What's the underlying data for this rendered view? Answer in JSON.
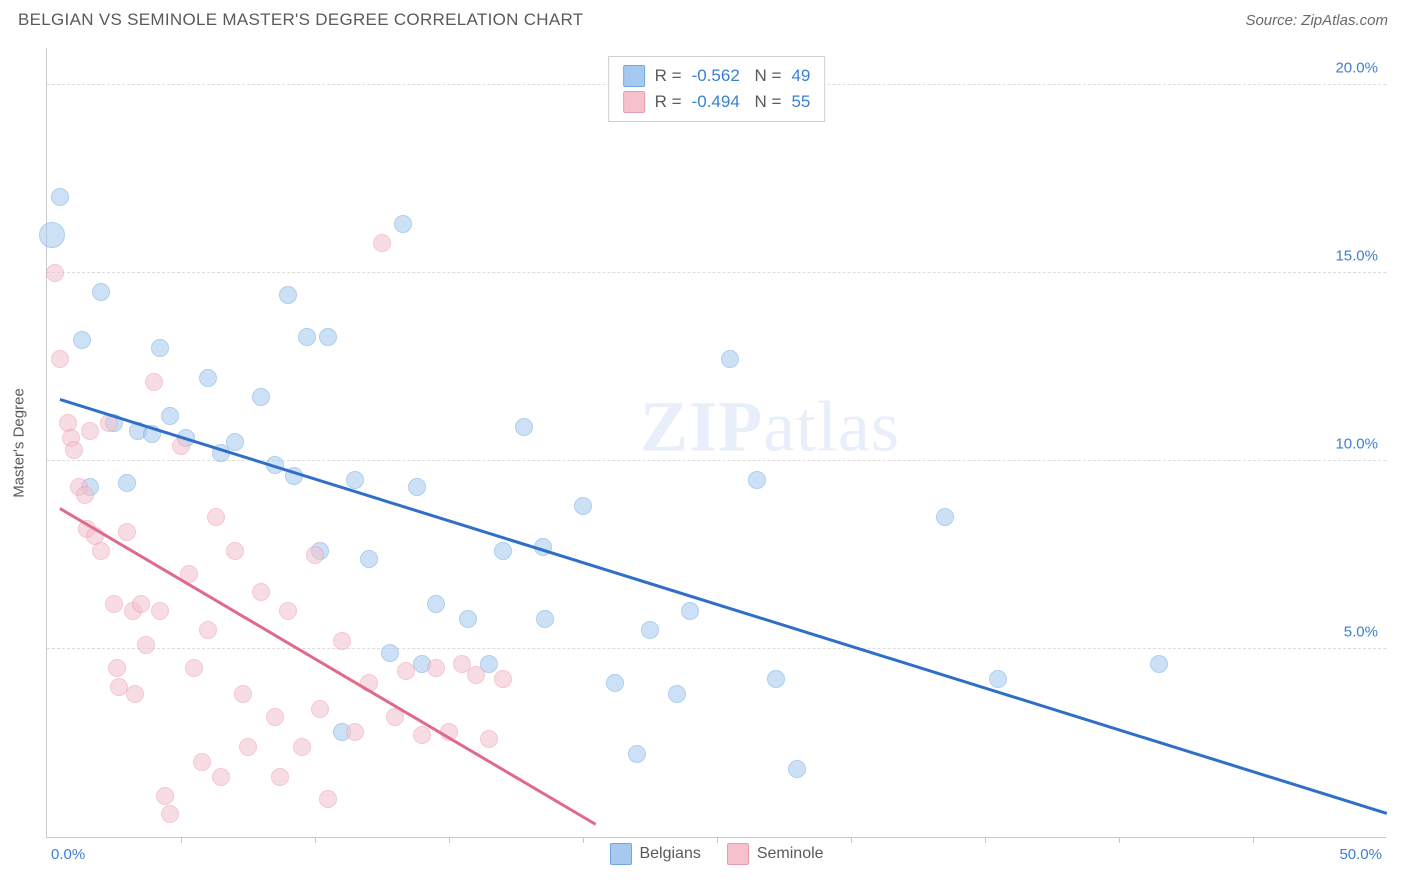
{
  "header": {
    "title": "BELGIAN VS SEMINOLE MASTER'S DEGREE CORRELATION CHART",
    "source": "Source: ZipAtlas.com"
  },
  "chart": {
    "type": "scatter",
    "yaxis_title": "Master's Degree",
    "xlim": [
      0,
      50
    ],
    "ylim": [
      0,
      21
    ],
    "xtick_step": 5,
    "yticks": [
      5.0,
      10.0,
      15.0,
      20.0
    ],
    "ytick_format": "%",
    "xlabel_min": "0.0%",
    "xlabel_max": "50.0%",
    "grid_color": "#dcdcdc",
    "axis_color": "#c8c8c8",
    "background_color": "#ffffff",
    "point_radius": 9,
    "point_opacity": 0.55,
    "line_width": 2.5,
    "series": [
      {
        "name": "Belgians",
        "color_fill": "#a6c9ef",
        "color_stroke": "#6fa7e0",
        "line_color": "#2f6fc7",
        "R": "-0.562",
        "N": "49",
        "trend": {
          "x1": 0.5,
          "y1": 11.6,
          "x2": 50,
          "y2": 0.6
        },
        "points": [
          [
            0.5,
            17.0
          ],
          [
            0.2,
            16.0,
            13
          ],
          [
            2.0,
            14.5
          ],
          [
            1.3,
            13.2
          ],
          [
            4.2,
            13.0
          ],
          [
            1.6,
            9.3
          ],
          [
            2.5,
            11.0
          ],
          [
            3.4,
            10.8
          ],
          [
            3.9,
            10.7
          ],
          [
            4.6,
            11.2
          ],
          [
            5.2,
            10.6
          ],
          [
            6.5,
            10.2
          ],
          [
            7.0,
            10.5
          ],
          [
            9.0,
            14.4
          ],
          [
            9.7,
            13.3
          ],
          [
            10.5,
            13.3
          ],
          [
            8.0,
            11.7
          ],
          [
            8.5,
            9.9
          ],
          [
            9.2,
            9.6
          ],
          [
            10.2,
            7.6
          ],
          [
            11.5,
            9.5
          ],
          [
            12.0,
            7.4
          ],
          [
            13.3,
            16.3
          ],
          [
            13.8,
            9.3
          ],
          [
            14.5,
            6.2
          ],
          [
            15.7,
            5.8
          ],
          [
            11.0,
            2.8
          ],
          [
            18.5,
            7.7
          ],
          [
            17.8,
            10.9
          ],
          [
            18.6,
            5.8
          ],
          [
            20.0,
            8.8
          ],
          [
            21.2,
            4.1
          ],
          [
            22.5,
            5.5
          ],
          [
            23.5,
            3.8
          ],
          [
            24.0,
            6.0
          ],
          [
            25.5,
            12.7
          ],
          [
            26.5,
            9.5
          ],
          [
            27.2,
            4.2
          ],
          [
            28.0,
            1.8
          ],
          [
            33.5,
            8.5
          ],
          [
            35.5,
            4.2
          ],
          [
            41.5,
            4.6
          ],
          [
            16.5,
            4.6
          ],
          [
            6.0,
            12.2
          ],
          [
            3.0,
            9.4
          ],
          [
            12.8,
            4.9
          ],
          [
            17.0,
            7.6
          ],
          [
            14.0,
            4.6
          ],
          [
            22.0,
            2.2
          ]
        ]
      },
      {
        "name": "Seminole",
        "color_fill": "#f4c1cd",
        "color_stroke": "#eb9bb0",
        "line_color": "#e06a8a",
        "R": "-0.494",
        "N": "55",
        "trend": {
          "x1": 0.5,
          "y1": 8.7,
          "x2": 20.5,
          "y2": 0.3
        },
        "points": [
          [
            0.3,
            15.0
          ],
          [
            0.5,
            12.7
          ],
          [
            0.8,
            11.0
          ],
          [
            0.9,
            10.6
          ],
          [
            1.0,
            10.3
          ],
          [
            1.2,
            9.3
          ],
          [
            1.4,
            9.1
          ],
          [
            1.5,
            8.2
          ],
          [
            1.6,
            10.8
          ],
          [
            1.8,
            8.0
          ],
          [
            2.0,
            7.6
          ],
          [
            2.3,
            11.0
          ],
          [
            2.5,
            6.2
          ],
          [
            2.6,
            4.5
          ],
          [
            2.7,
            4.0
          ],
          [
            3.0,
            8.1
          ],
          [
            3.2,
            6.0
          ],
          [
            3.3,
            3.8
          ],
          [
            3.5,
            6.2
          ],
          [
            3.7,
            5.1
          ],
          [
            4.0,
            12.1
          ],
          [
            4.2,
            6.0
          ],
          [
            4.4,
            1.1
          ],
          [
            4.6,
            0.6
          ],
          [
            5.0,
            10.4
          ],
          [
            5.3,
            7.0
          ],
          [
            5.5,
            4.5
          ],
          [
            5.8,
            2.0
          ],
          [
            6.0,
            5.5
          ],
          [
            6.3,
            8.5
          ],
          [
            6.5,
            1.6
          ],
          [
            7.0,
            7.6
          ],
          [
            7.3,
            3.8
          ],
          [
            7.5,
            2.4
          ],
          [
            8.0,
            6.5
          ],
          [
            8.5,
            3.2
          ],
          [
            8.7,
            1.6
          ],
          [
            9.0,
            6.0
          ],
          [
            9.5,
            2.4
          ],
          [
            10.0,
            7.5
          ],
          [
            10.2,
            3.4
          ],
          [
            10.5,
            1.0
          ],
          [
            11.0,
            5.2
          ],
          [
            11.5,
            2.8
          ],
          [
            12.0,
            4.1
          ],
          [
            12.5,
            15.8
          ],
          [
            13.0,
            3.2
          ],
          [
            13.4,
            4.4
          ],
          [
            14.0,
            2.7
          ],
          [
            14.5,
            4.5
          ],
          [
            15.0,
            2.8
          ],
          [
            15.5,
            4.6
          ],
          [
            16.0,
            4.3
          ],
          [
            16.5,
            2.6
          ],
          [
            17.0,
            4.2
          ]
        ]
      }
    ],
    "legend_bottom": [
      {
        "label": "Belgians",
        "fill": "#a6c9ef",
        "stroke": "#6fa7e0"
      },
      {
        "label": "Seminole",
        "fill": "#f4c1cd",
        "stroke": "#eb9bb0"
      }
    ],
    "watermark": {
      "part1": "ZIP",
      "part2": "atlas"
    }
  }
}
